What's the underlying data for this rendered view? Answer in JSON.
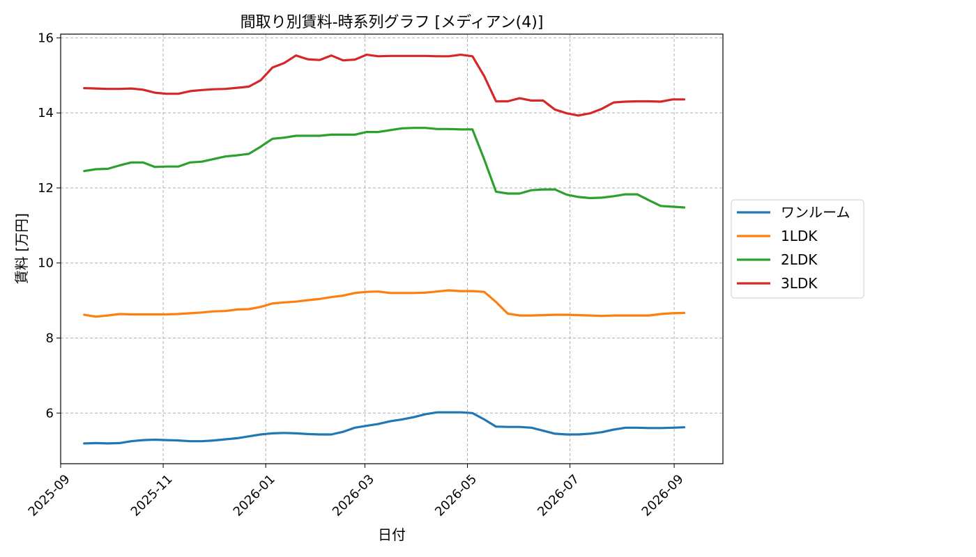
{
  "chart_data": {
    "type": "line",
    "title": "間取り別賃料-時系列グラフ [メディアン(4)]",
    "xlabel": "日付",
    "ylabel": "賃料 [万円]",
    "xlim": [
      "2025-09-01",
      "2026-09-30"
    ],
    "ylim": [
      4.65,
      16.1
    ],
    "x_ticks": [
      "2025-09",
      "2025-11",
      "2026-01",
      "2026-03",
      "2026-05",
      "2026-07",
      "2026-09"
    ],
    "y_ticks": [
      6,
      8,
      10,
      12,
      14,
      16
    ],
    "grid": true,
    "legend_position": "right",
    "x": [
      "2025-09-15",
      "2025-09-22",
      "2025-09-29",
      "2025-10-06",
      "2025-10-13",
      "2025-10-20",
      "2025-10-27",
      "2025-11-03",
      "2025-11-10",
      "2025-11-17",
      "2025-11-24",
      "2025-12-01",
      "2025-12-08",
      "2025-12-15",
      "2025-12-22",
      "2025-12-29",
      "2026-01-05",
      "2026-01-12",
      "2026-01-19",
      "2026-01-26",
      "2026-02-02",
      "2026-02-09",
      "2026-02-16",
      "2026-02-23",
      "2026-03-02",
      "2026-03-09",
      "2026-03-16",
      "2026-03-23",
      "2026-03-30",
      "2026-04-06",
      "2026-04-13",
      "2026-04-20",
      "2026-04-27",
      "2026-05-04",
      "2026-05-11",
      "2026-05-18",
      "2026-05-25",
      "2026-06-01",
      "2026-06-08",
      "2026-06-15",
      "2026-06-22",
      "2026-06-29",
      "2026-07-06",
      "2026-07-13",
      "2026-07-20",
      "2026-07-27",
      "2026-08-03",
      "2026-08-10",
      "2026-08-17",
      "2026-08-24",
      "2026-08-31",
      "2026-09-07"
    ],
    "series": [
      {
        "name": "ワンルーム",
        "color": "#1f77b4",
        "values": [
          5.19,
          5.2,
          5.19,
          5.2,
          5.25,
          5.28,
          5.29,
          5.28,
          5.27,
          5.25,
          5.25,
          5.27,
          5.3,
          5.33,
          5.38,
          5.43,
          5.46,
          5.47,
          5.46,
          5.44,
          5.43,
          5.43,
          5.5,
          5.61,
          5.66,
          5.71,
          5.78,
          5.83,
          5.89,
          5.97,
          6.02,
          6.02,
          6.02,
          6.0,
          5.83,
          5.64,
          5.63,
          5.63,
          5.61,
          5.53,
          5.45,
          5.43,
          5.43,
          5.45,
          5.49,
          5.56,
          5.61,
          5.61,
          5.6,
          5.6,
          5.61,
          5.62
        ]
      },
      {
        "name": "1LDK",
        "color": "#ff7f0e",
        "values": [
          8.62,
          8.57,
          8.6,
          8.64,
          8.63,
          8.63,
          8.63,
          8.63,
          8.64,
          8.66,
          8.68,
          8.71,
          8.72,
          8.76,
          8.77,
          8.83,
          8.92,
          8.95,
          8.97,
          9.01,
          9.04,
          9.09,
          9.13,
          9.2,
          9.23,
          9.24,
          9.2,
          9.2,
          9.2,
          9.21,
          9.24,
          9.27,
          9.25,
          9.25,
          9.23,
          8.96,
          8.65,
          8.6,
          8.6,
          8.61,
          8.62,
          8.62,
          8.61,
          8.6,
          8.59,
          8.6,
          8.6,
          8.6,
          8.6,
          8.64,
          8.66,
          8.67
        ]
      },
      {
        "name": "2LDK",
        "color": "#2ca02c",
        "values": [
          12.45,
          12.5,
          12.51,
          12.6,
          12.68,
          12.68,
          12.56,
          12.57,
          12.57,
          12.68,
          12.7,
          12.77,
          12.84,
          12.87,
          12.91,
          13.1,
          13.31,
          13.34,
          13.39,
          13.39,
          13.39,
          13.42,
          13.42,
          13.42,
          13.49,
          13.49,
          13.54,
          13.59,
          13.6,
          13.6,
          13.57,
          13.57,
          13.56,
          13.56,
          12.76,
          11.9,
          11.85,
          11.85,
          11.94,
          11.96,
          11.96,
          11.82,
          11.76,
          11.73,
          11.74,
          11.78,
          11.83,
          11.83,
          11.67,
          11.52,
          11.5,
          11.48
        ]
      },
      {
        "name": "3LDK",
        "color": "#d62728",
        "values": [
          14.66,
          14.65,
          14.64,
          14.64,
          14.65,
          14.62,
          14.54,
          14.51,
          14.51,
          14.58,
          14.61,
          14.63,
          14.64,
          14.67,
          14.7,
          14.87,
          15.21,
          15.33,
          15.53,
          15.43,
          15.41,
          15.53,
          15.4,
          15.42,
          15.55,
          15.51,
          15.52,
          15.52,
          15.52,
          15.52,
          15.51,
          15.51,
          15.55,
          15.51,
          14.98,
          14.31,
          14.31,
          14.39,
          14.33,
          14.33,
          14.09,
          13.99,
          13.93,
          13.99,
          14.11,
          14.28,
          14.3,
          14.31,
          14.31,
          14.3,
          14.36,
          14.36
        ]
      }
    ]
  }
}
